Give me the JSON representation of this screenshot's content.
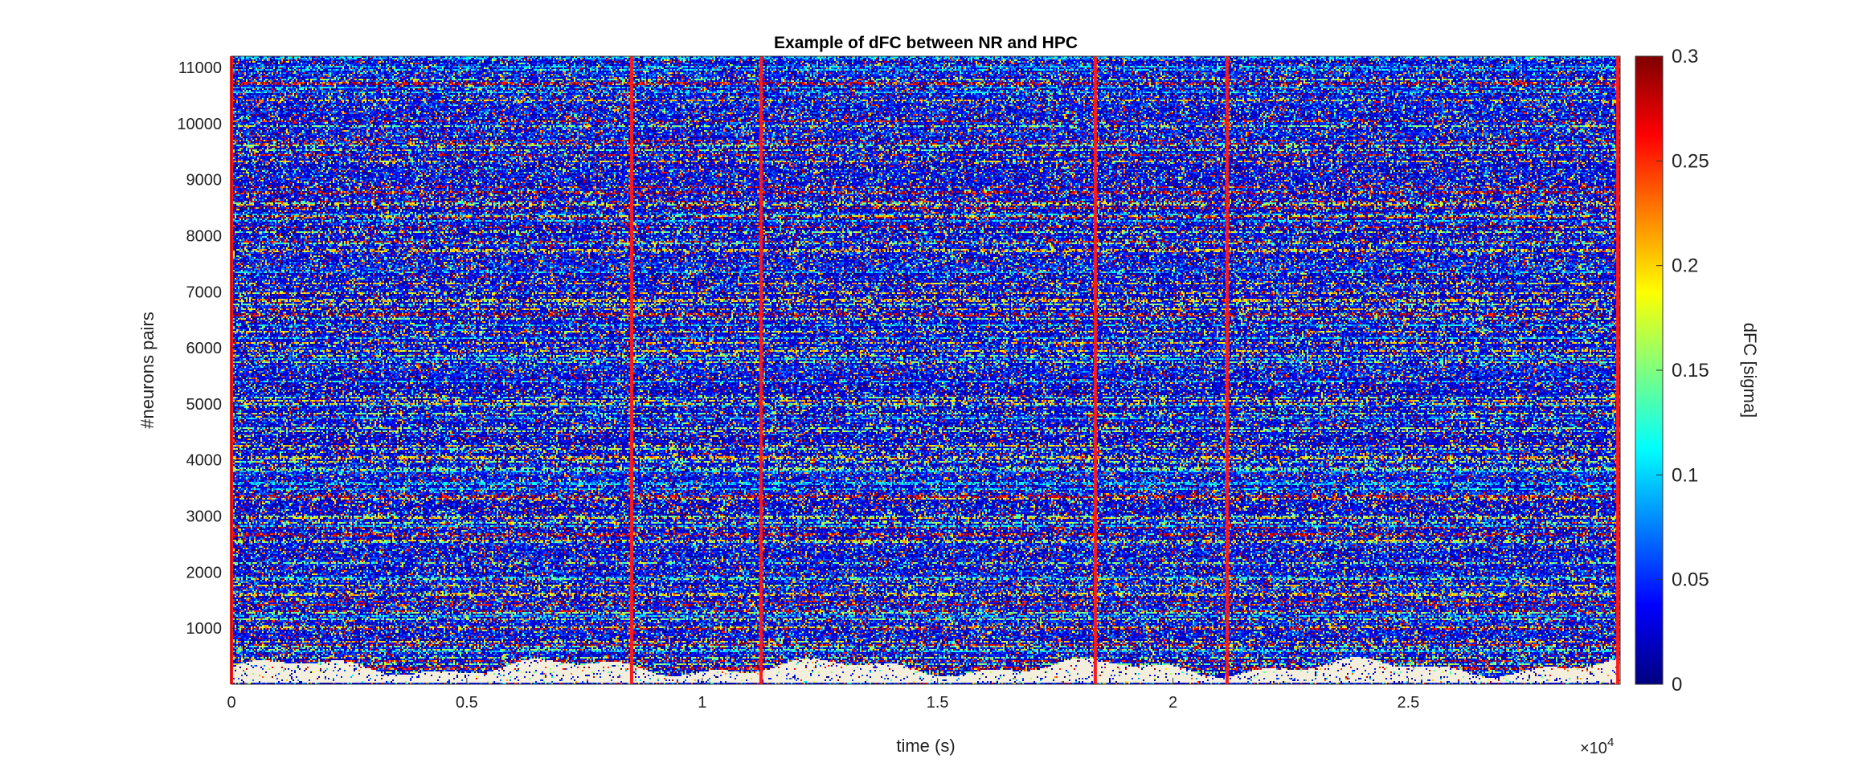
{
  "chart_data": {
    "type": "heatmap",
    "title": "Example of dFC between NR and HPC",
    "xlabel": "time (s)",
    "ylabel": "#neurons pairs",
    "xlim": [
      0,
      29500
    ],
    "ylim": [
      0,
      11200
    ],
    "x_ticks": [
      0,
      5000,
      10000,
      15000,
      20000,
      25000
    ],
    "x_tick_labels": [
      "0",
      "0.5",
      "1",
      "1.5",
      "2",
      "2.5"
    ],
    "x_exponent_label": "×10",
    "x_exponent_power": "4",
    "y_ticks": [
      1000,
      2000,
      3000,
      4000,
      5000,
      6000,
      7000,
      8000,
      9000,
      10000,
      11000
    ],
    "y_tick_labels": [
      "1000",
      "2000",
      "3000",
      "4000",
      "5000",
      "6000",
      "7000",
      "8000",
      "9000",
      "10000",
      "11000"
    ],
    "colormap": "jet",
    "colorbar": {
      "label": "dFC [sigma]",
      "clim": [
        0,
        0.3
      ],
      "ticks": [
        0,
        0.05,
        0.1,
        0.15,
        0.2,
        0.25,
        0.3
      ],
      "tick_labels": [
        "0",
        "0.05",
        "0.1",
        "0.15",
        "0.2",
        "0.25",
        "0.3"
      ]
    },
    "boundary_lines": {
      "color": "#ff1a1a",
      "x": [
        0,
        8500,
        11250,
        18350,
        21150,
        29450
      ]
    },
    "missing_band": {
      "color": "#f4efdc",
      "y_range": [
        0,
        300
      ]
    }
  }
}
